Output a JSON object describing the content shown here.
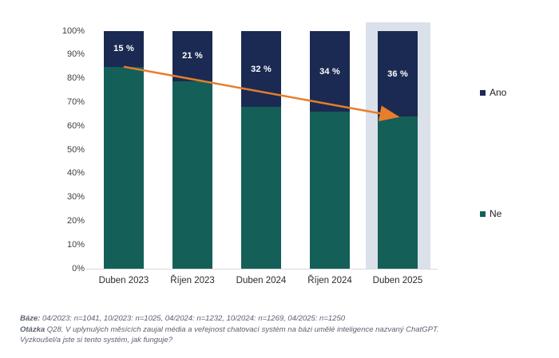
{
  "chart_data": {
    "type": "bar",
    "subtype": "stacked-100-percent-column",
    "categories": [
      "Duben 2023",
      "Říjen 2023",
      "Duben 2024",
      "Říjen 2024",
      "Duben 2025"
    ],
    "series": [
      {
        "name": "Ano",
        "color": "#1b2a52",
        "values": [
          15,
          21,
          32,
          34,
          36
        ]
      },
      {
        "name": "Ne",
        "color": "#145f58",
        "values": [
          85,
          79,
          68,
          66,
          64
        ]
      }
    ],
    "bar_labels": [
      "15 %",
      "21 %",
      "32 %",
      "34 %",
      "36 %"
    ],
    "y_ticks": [
      "100%",
      "90%",
      "80%",
      "70%",
      "60%",
      "50%",
      "40%",
      "30%",
      "20%",
      "10%",
      "0%"
    ],
    "ylim": [
      0,
      100
    ],
    "grid": "off",
    "legend_position": "right",
    "highlighted_category": "Duben 2025",
    "highlight_color": "#dbe1ea",
    "trend_arrow": {
      "color": "#e87d2b",
      "from_category": "Duben 2023",
      "from_percent": 85,
      "to_category": "Duben 2025",
      "to_percent": 64
    }
  },
  "legend": {
    "items": [
      {
        "label": "Ano",
        "color": "#1b2a52"
      },
      {
        "label": "Ne",
        "color": "#145f58"
      }
    ]
  },
  "footnotes": {
    "base_label": "Báze:",
    "base_text": " 04/2023: n=1041, 10/2023: n=1025, 04/2024: n=1232, 10/2024: n=1269, 04/2025: n=1250",
    "question_label": "Otázka",
    "question_text": " Q28. V uplynulých měsících zaujal média a veřejnost chatovací systém na bázi umělé inteligence nazvaný ChatGPT.",
    "question_text2": "Vyzkoušel/a jste si tento systém, jak funguje?"
  },
  "colors": {
    "ano_navy": "#1b2a52",
    "ne_teal": "#145f58",
    "arrow_orange": "#e87d2b",
    "highlight_gray_blue": "#dbe1ea",
    "axis_line": "#d9d9d9",
    "tick_text": "#3f3f3f",
    "footnote_text": "#5b6170"
  }
}
